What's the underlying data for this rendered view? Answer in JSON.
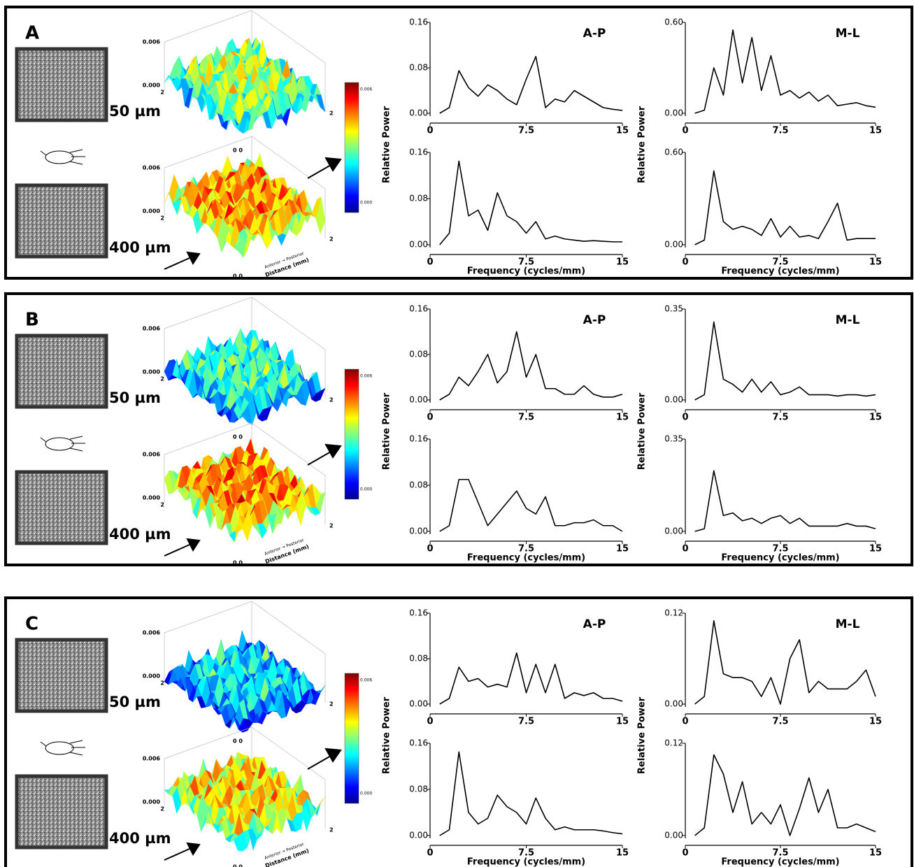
{
  "panels": [
    {
      "letter": "A",
      "depth_top": "50 µm",
      "depth_bottom": "400 µm",
      "z_max": "0.006",
      "z_min": "0.000",
      "edge": "2",
      "origin": "0 0",
      "direction": "Anterior → Posterior",
      "distance": "Distance (mm)",
      "colorbar_max": "0.006",
      "colorbar_min": "0.000"
    },
    {
      "letter": "B",
      "depth_top": "50 µm",
      "depth_bottom": "400 µm",
      "z_max": "0.006",
      "z_min": "0.000",
      "edge": "2",
      "origin": "0 0",
      "direction": "Anterior → Posterior",
      "distance": "Distance (mm)",
      "colorbar_max": "0.006",
      "colorbar_min": "0.000"
    },
    {
      "letter": "C",
      "depth_top": "50 µm",
      "depth_bottom": "400 µm",
      "z_max": "0.006",
      "z_min": "0.000",
      "edge": "2",
      "origin": "0 0",
      "direction": "Anterior → Posterior",
      "distance": "Distance (mm)",
      "colorbar_max": "0.006",
      "colorbar_min": "0.000"
    }
  ],
  "chart_data": [
    {
      "type": "line",
      "title": "A-P",
      "ylabel": "Relative Power",
      "x": [
        0.75,
        1.5,
        2.25,
        3,
        3.75,
        4.5,
        5.25,
        6,
        6.75,
        7.5,
        8.25,
        9,
        9.75,
        10.5,
        11.25,
        12,
        12.75,
        13.5,
        14.25,
        15
      ],
      "values": [
        0,
        0.01,
        0.075,
        0.045,
        0.03,
        0.05,
        0.04,
        0.025,
        0.015,
        0.06,
        0.1,
        0.01,
        0.025,
        0.02,
        0.04,
        0.03,
        0.02,
        0.01,
        0.007,
        0.005
      ],
      "xlim": [
        0,
        15
      ],
      "xticks": [
        0,
        7.5,
        15
      ],
      "ylim": [
        0,
        0.16
      ],
      "yticks": [
        {
          "value": 0,
          "label": "0.00"
        },
        {
          "value": 0.08,
          "label": "0.08"
        },
        {
          "value": 0.16,
          "label": "0.16"
        }
      ],
      "color": "#000000"
    },
    {
      "type": "line",
      "xlabel": "Frequency  (cycles/mm)",
      "x": [
        0.75,
        1.5,
        2.25,
        3,
        3.75,
        4.5,
        5.25,
        6,
        6.75,
        7.5,
        8.25,
        9,
        9.75,
        10.5,
        11.25,
        12,
        12.75,
        13.5,
        14.25,
        15
      ],
      "values": [
        0,
        0.02,
        0.145,
        0.05,
        0.06,
        0.025,
        0.09,
        0.05,
        0.04,
        0.02,
        0.04,
        0.01,
        0.015,
        0.01,
        0.008,
        0.006,
        0.007,
        0.006,
        0.005,
        0.005
      ],
      "xlim": [
        0,
        15
      ],
      "xticks": [
        0,
        7.5,
        15
      ],
      "ylim": [
        0,
        0.16
      ],
      "yticks": [
        {
          "value": 0,
          "label": "0.00"
        },
        {
          "value": 0.08,
          "label": "0.08"
        },
        {
          "value": 0.16,
          "label": "0.16"
        }
      ],
      "color": "#000000"
    },
    {
      "type": "line",
      "title": "M-L",
      "ylabel": "Relative Power",
      "x": [
        0.75,
        1.5,
        2.25,
        3,
        3.75,
        4.5,
        5.25,
        6,
        6.75,
        7.5,
        8.25,
        9,
        9.75,
        10.5,
        11.25,
        12,
        12.75,
        13.5,
        14.25,
        15
      ],
      "values": [
        0,
        0.02,
        0.3,
        0.12,
        0.55,
        0.2,
        0.5,
        0.15,
        0.38,
        0.12,
        0.15,
        0.1,
        0.14,
        0.08,
        0.12,
        0.05,
        0.06,
        0.07,
        0.05,
        0.04
      ],
      "xlim": [
        0,
        15
      ],
      "xticks": [
        0,
        7.5,
        15
      ],
      "ylim": [
        0,
        0.6
      ],
      "yticks": [
        {
          "value": 0,
          "label": "0.00"
        },
        {
          "value": 0.6,
          "label": "0.60"
        }
      ],
      "color": "#000000"
    },
    {
      "type": "line",
      "xlabel": "Frequency  (cycles/mm)",
      "x": [
        0.75,
        1.5,
        2.25,
        3,
        3.75,
        4.5,
        5.25,
        6,
        6.75,
        7.5,
        8.25,
        9,
        9.75,
        10.5,
        11.25,
        12,
        12.75,
        13.5,
        14.25,
        15
      ],
      "values": [
        0,
        0.03,
        0.48,
        0.15,
        0.1,
        0.12,
        0.1,
        0.06,
        0.17,
        0.05,
        0.12,
        0.05,
        0.06,
        0.04,
        0.15,
        0.27,
        0.03,
        0.04,
        0.04,
        0.04
      ],
      "xlim": [
        0,
        15
      ],
      "xticks": [
        0,
        7.5,
        15
      ],
      "ylim": [
        0,
        0.6
      ],
      "yticks": [
        {
          "value": 0,
          "label": "0.00"
        },
        {
          "value": 0.6,
          "label": "0.60"
        }
      ],
      "color": "#000000"
    },
    {
      "type": "line",
      "title": "A-P",
      "ylabel": "Relative Power",
      "x": [
        0.75,
        1.5,
        2.25,
        3,
        3.75,
        4.5,
        5.25,
        6,
        6.75,
        7.5,
        8.25,
        9,
        9.75,
        10.5,
        11.25,
        12,
        12.75,
        13.5,
        14.25,
        15
      ],
      "values": [
        0,
        0.01,
        0.04,
        0.025,
        0.05,
        0.08,
        0.03,
        0.05,
        0.12,
        0.04,
        0.08,
        0.02,
        0.02,
        0.01,
        0.01,
        0.025,
        0.01,
        0.005,
        0.005,
        0.01
      ],
      "xlim": [
        0,
        15
      ],
      "xticks": [
        0,
        7.5,
        15
      ],
      "ylim": [
        0,
        0.16
      ],
      "yticks": [
        {
          "value": 0,
          "label": "0.00"
        },
        {
          "value": 0.08,
          "label": "0.08"
        },
        {
          "value": 0.16,
          "label": "0.16"
        }
      ],
      "color": "#000000"
    },
    {
      "type": "line",
      "xlabel": "Frequency  (cycles/mm)",
      "x": [
        0.75,
        1.5,
        2.25,
        3,
        3.75,
        4.5,
        5.25,
        6,
        6.75,
        7.5,
        8.25,
        9,
        9.75,
        10.5,
        11.25,
        12,
        12.75,
        13.5,
        14.25,
        15
      ],
      "values": [
        0,
        0.01,
        0.09,
        0.09,
        0.05,
        0.01,
        0.03,
        0.05,
        0.07,
        0.04,
        0.03,
        0.06,
        0.01,
        0.01,
        0.015,
        0.015,
        0.02,
        0.01,
        0.01,
        0
      ],
      "xlim": [
        0,
        15
      ],
      "xticks": [
        0,
        7.5,
        15
      ],
      "ylim": [
        0,
        0.16
      ],
      "yticks": [
        {
          "value": 0,
          "label": "0.00"
        },
        {
          "value": 0.08,
          "label": "0.08"
        },
        {
          "value": 0.16,
          "label": "0.16"
        }
      ],
      "color": "#000000"
    },
    {
      "type": "line",
      "title": "M-L",
      "ylabel": "Relative Power",
      "x": [
        0.75,
        1.5,
        2.25,
        3,
        3.75,
        4.5,
        5.25,
        6,
        6.75,
        7.5,
        8.25,
        9,
        9.75,
        10.5,
        11.25,
        12,
        12.75,
        13.5,
        14.25,
        15
      ],
      "values": [
        0,
        0.02,
        0.3,
        0.08,
        0.06,
        0.03,
        0.08,
        0.03,
        0.07,
        0.02,
        0.03,
        0.05,
        0.02,
        0.02,
        0.02,
        0.015,
        0.02,
        0.02,
        0.015,
        0.02
      ],
      "xlim": [
        0,
        15
      ],
      "xticks": [
        0,
        7.5,
        15
      ],
      "ylim": [
        0,
        0.35
      ],
      "yticks": [
        {
          "value": 0,
          "label": "0.00"
        },
        {
          "value": 0.35,
          "label": "0.35"
        }
      ],
      "color": "#000000"
    },
    {
      "type": "line",
      "xlabel": "Frequency  (cycles/mm)",
      "x": [
        0.75,
        1.5,
        2.25,
        3,
        3.75,
        4.5,
        5.25,
        6,
        6.75,
        7.5,
        8.25,
        9,
        9.75,
        10.5,
        11.25,
        12,
        12.75,
        13.5,
        14.25,
        15
      ],
      "values": [
        0,
        0.01,
        0.23,
        0.06,
        0.07,
        0.04,
        0.05,
        0.03,
        0.05,
        0.06,
        0.03,
        0.05,
        0.02,
        0.02,
        0.02,
        0.02,
        0.03,
        0.02,
        0.02,
        0.01
      ],
      "xlim": [
        0,
        15
      ],
      "xticks": [
        0,
        7.5,
        15
      ],
      "ylim": [
        0,
        0.35
      ],
      "yticks": [
        {
          "value": 0,
          "label": "0.00"
        },
        {
          "value": 0.35,
          "label": "0.35"
        }
      ],
      "color": "#000000"
    },
    {
      "type": "line",
      "title": "A-P",
      "ylabel": "Relative Power",
      "x": [
        0.75,
        1.5,
        2.25,
        3,
        3.75,
        4.5,
        5.25,
        6,
        6.75,
        7.5,
        8.25,
        9,
        9.75,
        10.5,
        11.25,
        12,
        12.75,
        13.5,
        14.25,
        15
      ],
      "values": [
        0,
        0.01,
        0.065,
        0.04,
        0.045,
        0.03,
        0.035,
        0.03,
        0.09,
        0.02,
        0.07,
        0.02,
        0.07,
        0.01,
        0.02,
        0.015,
        0.02,
        0.01,
        0.01,
        0.005
      ],
      "xlim": [
        0,
        15
      ],
      "xticks": [
        0,
        7.5,
        15
      ],
      "ylim": [
        0,
        0.16
      ],
      "yticks": [
        {
          "value": 0,
          "label": "0.00"
        },
        {
          "value": 0.08,
          "label": "0.08"
        },
        {
          "value": 0.16,
          "label": "0.16"
        }
      ],
      "color": "#000000"
    },
    {
      "type": "line",
      "xlabel": "Frequency  (cycles/mm)",
      "x": [
        0.75,
        1.5,
        2.25,
        3,
        3.75,
        4.5,
        5.25,
        6,
        6.75,
        7.5,
        8.25,
        9,
        9.75,
        10.5,
        11.25,
        12,
        12.75,
        13.5,
        14.25,
        15
      ],
      "values": [
        0,
        0.01,
        0.145,
        0.04,
        0.02,
        0.03,
        0.07,
        0.05,
        0.04,
        0.02,
        0.065,
        0.03,
        0.01,
        0.015,
        0.01,
        0.01,
        0.01,
        0.008,
        0.005,
        0.003
      ],
      "xlim": [
        0,
        15
      ],
      "xticks": [
        0,
        7.5,
        15
      ],
      "ylim": [
        0,
        0.16
      ],
      "yticks": [
        {
          "value": 0,
          "label": "0.00"
        },
        {
          "value": 0.08,
          "label": "0.08"
        },
        {
          "value": 0.16,
          "label": "0.16"
        }
      ],
      "color": "#000000"
    },
    {
      "type": "line",
      "title": "M-L",
      "ylabel": "Relative Power",
      "x": [
        0.75,
        1.5,
        2.25,
        3,
        3.75,
        4.5,
        5.25,
        6,
        6.75,
        7.5,
        8.25,
        9,
        9.75,
        10.5,
        11.25,
        12,
        12.75,
        13.5,
        14.25,
        15
      ],
      "values": [
        0,
        0.01,
        0.11,
        0.04,
        0.035,
        0.035,
        0.03,
        0.01,
        0.035,
        0,
        0.06,
        0.085,
        0.015,
        0.03,
        0.02,
        0.02,
        0.02,
        0.03,
        0.045,
        0.01
      ],
      "xlim": [
        0,
        15
      ],
      "xticks": [
        0,
        7.5,
        15
      ],
      "ylim": [
        0,
        0.12
      ],
      "yticks": [
        {
          "value": 0,
          "label": "0.00"
        },
        {
          "value": 0.12,
          "label": "0.12"
        }
      ],
      "color": "#000000"
    },
    {
      "type": "line",
      "xlabel": "Frequency  (cycles/mm)",
      "x": [
        0.75,
        1.5,
        2.25,
        3,
        3.75,
        4.5,
        5.25,
        6,
        6.75,
        7.5,
        8.25,
        9,
        9.75,
        10.5,
        11.25,
        12,
        12.75,
        13.5,
        14.25,
        15
      ],
      "values": [
        0,
        0.01,
        0.105,
        0.08,
        0.03,
        0.07,
        0.015,
        0.03,
        0.015,
        0.04,
        0,
        0.035,
        0.075,
        0.03,
        0.06,
        0.01,
        0.01,
        0.015,
        0.01,
        0.005
      ],
      "xlim": [
        0,
        15
      ],
      "xticks": [
        0,
        7.5,
        15
      ],
      "ylim": [
        0,
        0.12
      ],
      "yticks": [
        {
          "value": 0,
          "label": "0.00"
        },
        {
          "value": 0.12,
          "label": "0.12"
        }
      ],
      "color": "#000000"
    }
  ]
}
